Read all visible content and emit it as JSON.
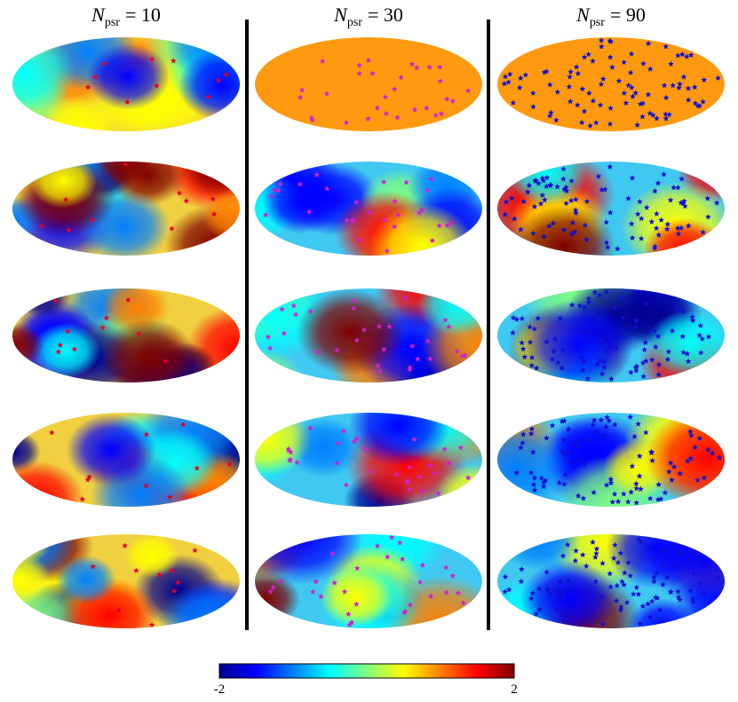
{
  "columns": [
    {
      "symbol": "N",
      "subscript": "psr",
      "relation": "= 10"
    },
    {
      "symbol": "N",
      "subscript": "psr",
      "relation": "= 30"
    },
    {
      "symbol": "N",
      "subscript": "psr",
      "relation": "= 90"
    }
  ],
  "colorbar": {
    "min": -2,
    "max": 2
  }
}
